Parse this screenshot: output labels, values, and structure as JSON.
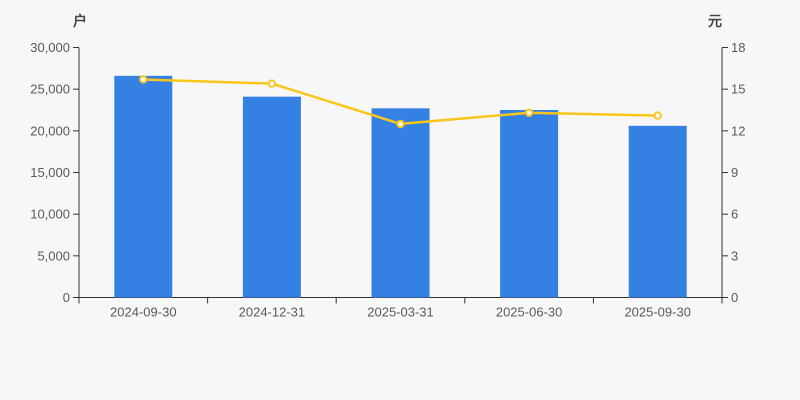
{
  "chart_data": {
    "type": "combo",
    "title": "",
    "categories": [
      "2024-09-30",
      "2024-12-31",
      "2025-03-31",
      "2025-06-30",
      "2025-09-30"
    ],
    "series": [
      {
        "name": "户",
        "type": "bar",
        "y_axis": "left",
        "color": "#3481e3",
        "values": [
          26600,
          24100,
          22700,
          22500,
          20600
        ]
      },
      {
        "name": "元",
        "type": "line",
        "y_axis": "right",
        "color": "#fac61b",
        "marker_fill": "#ffffff",
        "values": [
          15.7,
          15.4,
          12.5,
          13.3,
          13.1
        ]
      }
    ],
    "left_axis": {
      "label": "户",
      "min": 0,
      "max": 30000,
      "tick_step": 5000,
      "tick_labels": [
        "0",
        "5,000",
        "10,000",
        "15,000",
        "20,000",
        "25,000",
        "30,000"
      ]
    },
    "right_axis": {
      "label": "元",
      "min": 0,
      "max": 18,
      "tick_step": 3,
      "tick_labels": [
        "0",
        "3",
        "6",
        "9",
        "12",
        "15",
        "18"
      ]
    },
    "grid": false,
    "legend": null
  },
  "style": {
    "background": "#f7f7f7",
    "axis_line_color": "#333333",
    "tick_label_color": "#5a5a5a",
    "axis_title_color": "#444444"
  }
}
